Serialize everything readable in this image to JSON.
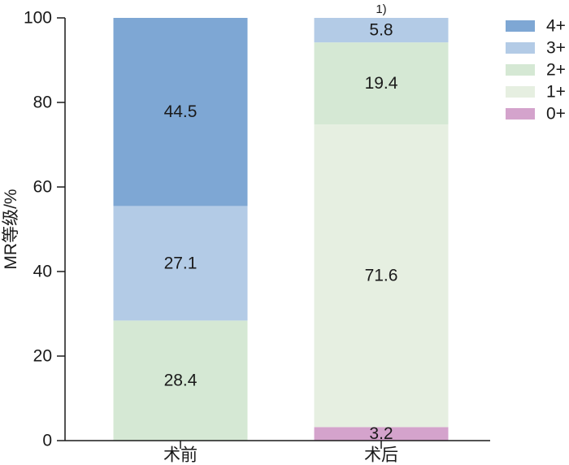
{
  "chart_data": {
    "type": "bar",
    "stacked": true,
    "categories": [
      "术前",
      "术后"
    ],
    "series": [
      {
        "name": "0+",
        "color": "#d4a3cc",
        "values": [
          0,
          3.2
        ]
      },
      {
        "name": "1+",
        "color": "#e6efe1",
        "values": [
          0,
          71.6
        ]
      },
      {
        "name": "2+",
        "color": "#d5e8d4",
        "values": [
          28.4,
          19.4
        ]
      },
      {
        "name": "3+",
        "color": "#b3cbe6",
        "values": [
          27.1,
          5.8
        ]
      },
      {
        "name": "4+",
        "color": "#7ea7d4",
        "values": [
          44.5,
          0
        ]
      }
    ],
    "data_labels": [
      {
        "category": 0,
        "series": "2+",
        "text": "28.4"
      },
      {
        "category": 0,
        "series": "3+",
        "text": "27.1"
      },
      {
        "category": 0,
        "series": "4+",
        "text": "44.5"
      },
      {
        "category": 1,
        "series": "0+",
        "text": "3.2"
      },
      {
        "category": 1,
        "series": "1+",
        "text": "71.6"
      },
      {
        "category": 1,
        "series": "2+",
        "text": "19.4"
      },
      {
        "category": 1,
        "series": "3+",
        "text": "5.8"
      }
    ],
    "annotation": {
      "category": 1,
      "text": "1)"
    },
    "ylabel": "MR等级/%",
    "xlabel": "",
    "ylim": [
      0,
      100
    ],
    "yticks": [
      0,
      20,
      40,
      60,
      80,
      100
    ],
    "legend": {
      "placement": "right",
      "order": [
        "4+",
        "3+",
        "2+",
        "1+",
        "0+"
      ]
    },
    "grid": false
  }
}
